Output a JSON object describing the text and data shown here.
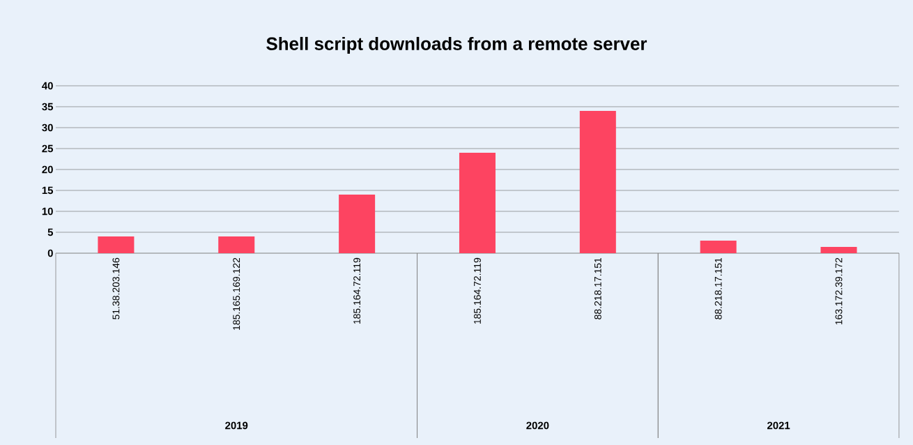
{
  "chart_data": {
    "type": "bar",
    "title": "Shell script downloads from a remote server",
    "categories": [
      "51.38.203.146",
      "185.165.169.122",
      "185.164.72.119",
      "185.164.72.119",
      "88.218.17.151",
      "88.218.17.151",
      "163.172.39.172"
    ],
    "values": [
      4,
      4,
      14,
      24,
      34,
      3,
      1.5
    ],
    "color": "#fd4461",
    "ylim": [
      0,
      40
    ],
    "yticks": [
      0,
      5,
      10,
      15,
      20,
      25,
      30,
      35,
      40
    ],
    "grid": "y",
    "annotations": [
      "2019",
      "2020",
      "2021"
    ]
  }
}
